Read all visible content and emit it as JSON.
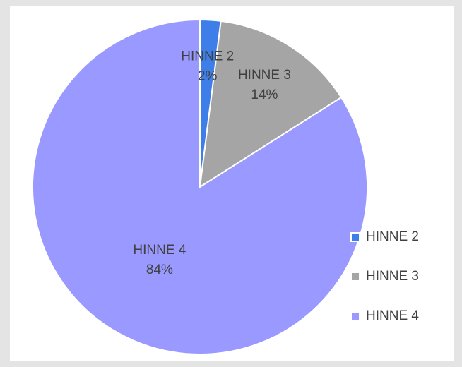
{
  "chart_data": {
    "type": "pie",
    "categories": [
      "HINNE 2",
      "HINNE 3",
      "HINNE 4"
    ],
    "values": [
      2,
      14,
      84
    ],
    "value_labels": [
      "2%",
      "14%",
      "84%"
    ],
    "colors": [
      "#3d7ee8",
      "#a5a5a5",
      "#9999ff"
    ],
    "legend": "right"
  }
}
